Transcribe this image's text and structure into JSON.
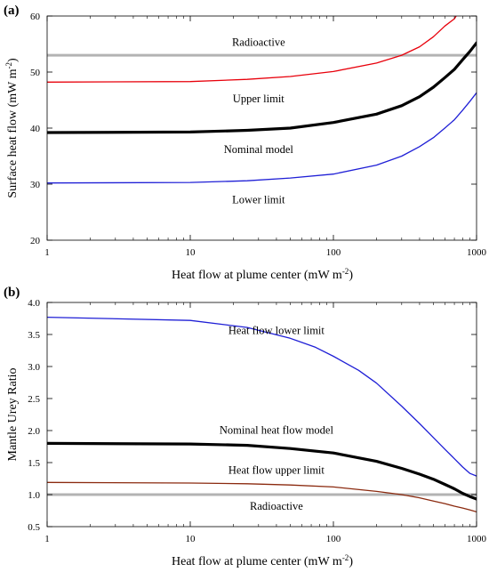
{
  "chart_data": [
    {
      "type": "line",
      "panel_label": "(a)",
      "xlabel": "Heat flow at plume center (mW m",
      "xlabel_sup": "-2",
      "xlabel_end": ")",
      "ylabel": "Surface heat flow (mW m",
      "ylabel_sup": "-2",
      "ylabel_end": ")",
      "xscale": "log",
      "xlim": [
        1,
        1000
      ],
      "ylim": [
        20,
        60
      ],
      "xticks": [
        1,
        10,
        100,
        1000
      ],
      "xtick_labels": [
        "1",
        "10",
        "100",
        "1000"
      ],
      "yticks": [
        20,
        30,
        40,
        50,
        60
      ],
      "ytick_labels": [
        "20",
        "30",
        "40",
        "50",
        "60"
      ],
      "grid": false,
      "series": [
        {
          "name": "Radioactive",
          "color": "#b3b3b3",
          "x": [
            1,
            1000
          ],
          "values": [
            53.0,
            53.0
          ]
        },
        {
          "name": "Upper limit",
          "color": "#e8000b",
          "x": [
            1,
            10,
            25,
            50,
            100,
            200,
            300,
            400,
            500,
            600,
            700,
            720
          ],
          "values": [
            48.2,
            48.3,
            48.7,
            49.2,
            50.1,
            51.6,
            53.0,
            54.5,
            56.3,
            58.2,
            59.5,
            60.0
          ]
        },
        {
          "name": "Nominal model",
          "color": "#000000",
          "x": [
            1,
            10,
            25,
            50,
            100,
            200,
            300,
            400,
            500,
            600,
            700,
            800,
            900,
            1000
          ],
          "values": [
            39.2,
            39.3,
            39.6,
            40.0,
            41.0,
            42.5,
            44.0,
            45.6,
            47.3,
            49.0,
            50.5,
            52.2,
            53.7,
            55.2
          ]
        },
        {
          "name": "Lower limit",
          "color": "#1f1fd6",
          "x": [
            1,
            10,
            25,
            50,
            100,
            200,
            300,
            400,
            500,
            600,
            700,
            800,
            900,
            1000
          ],
          "values": [
            30.2,
            30.3,
            30.6,
            31.1,
            31.8,
            33.4,
            35.0,
            36.7,
            38.3,
            40.0,
            41.5,
            43.2,
            44.8,
            46.3
          ]
        }
      ],
      "annotations": [
        {
          "text": "Radioactive",
          "x": 30,
          "y": 55.3
        },
        {
          "text": "Upper limit",
          "x": 30,
          "y": 45.2
        },
        {
          "text": "Nominal model",
          "x": 30,
          "y": 36.2
        },
        {
          "text": "Lower limit",
          "x": 30,
          "y": 27.2
        }
      ]
    },
    {
      "type": "line",
      "panel_label": "(b)",
      "xlabel": "Heat flow at plume center (mW m",
      "xlabel_sup": "-2",
      "xlabel_end": ")",
      "ylabel": "Mantle Urey Ratio",
      "xscale": "log",
      "xlim": [
        1,
        1000
      ],
      "ylim": [
        0.5,
        4.0
      ],
      "xticks": [
        1,
        10,
        100,
        1000
      ],
      "xtick_labels": [
        "1",
        "10",
        "100",
        "1000"
      ],
      "yticks": [
        0.5,
        1.0,
        1.5,
        2.0,
        2.5,
        3.0,
        3.5,
        4.0
      ],
      "ytick_labels": [
        "0.5",
        "1.0",
        "1.5",
        "2.0",
        "2.5",
        "3.0",
        "3.5",
        "4.0"
      ],
      "grid": false,
      "series": [
        {
          "name": "Radioactive",
          "color": "#b3b3b3",
          "x": [
            1,
            1000
          ],
          "values": [
            1.0,
            1.0
          ]
        },
        {
          "name": "Heat flow upper limit",
          "color": "#8b2a0f",
          "x": [
            1,
            10,
            25,
            50,
            100,
            200,
            300,
            400,
            500,
            600,
            700,
            800,
            900,
            1000
          ],
          "values": [
            1.19,
            1.18,
            1.17,
            1.15,
            1.12,
            1.05,
            1.0,
            0.95,
            0.9,
            0.86,
            0.82,
            0.79,
            0.76,
            0.73
          ]
        },
        {
          "name": "Nominal heat flow model",
          "color": "#000000",
          "x": [
            1,
            10,
            25,
            50,
            100,
            200,
            300,
            400,
            500,
            600,
            700,
            800,
            900,
            1000
          ],
          "values": [
            1.8,
            1.79,
            1.77,
            1.72,
            1.65,
            1.52,
            1.41,
            1.32,
            1.24,
            1.16,
            1.09,
            1.02,
            0.97,
            0.93
          ]
        },
        {
          "name": "Heat flow lower limit",
          "color": "#1f1fd6",
          "x": [
            1,
            10,
            25,
            50,
            75,
            100,
            150,
            200,
            300,
            400,
            500,
            600,
            700,
            800,
            900,
            1000
          ],
          "values": [
            3.77,
            3.72,
            3.61,
            3.44,
            3.3,
            3.16,
            2.94,
            2.74,
            2.38,
            2.11,
            1.89,
            1.71,
            1.56,
            1.43,
            1.33,
            1.29
          ]
        }
      ],
      "annotations": [
        {
          "text": "Heat flow lower limit",
          "x": 40,
          "y": 3.56
        },
        {
          "text": "Nominal heat flow model",
          "x": 40,
          "y": 2.01
        },
        {
          "text": "Heat flow upper limit",
          "x": 40,
          "y": 1.38
        },
        {
          "text": "Radioactive",
          "x": 40,
          "y": 0.82
        }
      ]
    }
  ]
}
